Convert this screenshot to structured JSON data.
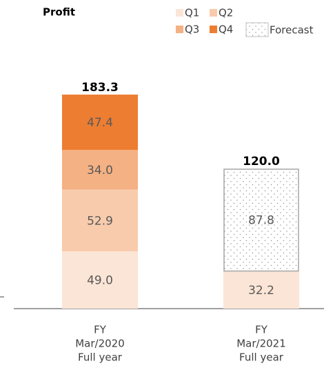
{
  "chart_data": {
    "type": "stacked_bar",
    "title": "Profit",
    "categories": [
      [
        "FY",
        "Mar/2020",
        "Full year"
      ],
      [
        "FY",
        "Mar/2021",
        "Full year"
      ]
    ],
    "series": [
      {
        "name": "Q1",
        "color": "#fbe5d6",
        "values": [
          49.0,
          32.2
        ],
        "value_labels": [
          "49.0",
          "32.2"
        ]
      },
      {
        "name": "Q2",
        "color": "#f8cbad",
        "values": [
          52.9,
          null
        ],
        "value_labels": [
          "52.9",
          null
        ]
      },
      {
        "name": "Q3",
        "color": "#f4b183",
        "values": [
          34.0,
          null
        ],
        "value_labels": [
          "34.0",
          null
        ]
      },
      {
        "name": "Q4",
        "color": "#ed7d31",
        "values": [
          47.4,
          null
        ],
        "value_labels": [
          "47.4",
          null
        ]
      },
      {
        "name": "Forecast",
        "color": "#ffffff",
        "pattern": "dotted",
        "values": [
          null,
          87.8
        ],
        "value_labels": [
          null,
          "87.8"
        ]
      }
    ],
    "totals": [
      183.3,
      120.0
    ],
    "total_labels": [
      "183.3",
      "120.0"
    ]
  }
}
